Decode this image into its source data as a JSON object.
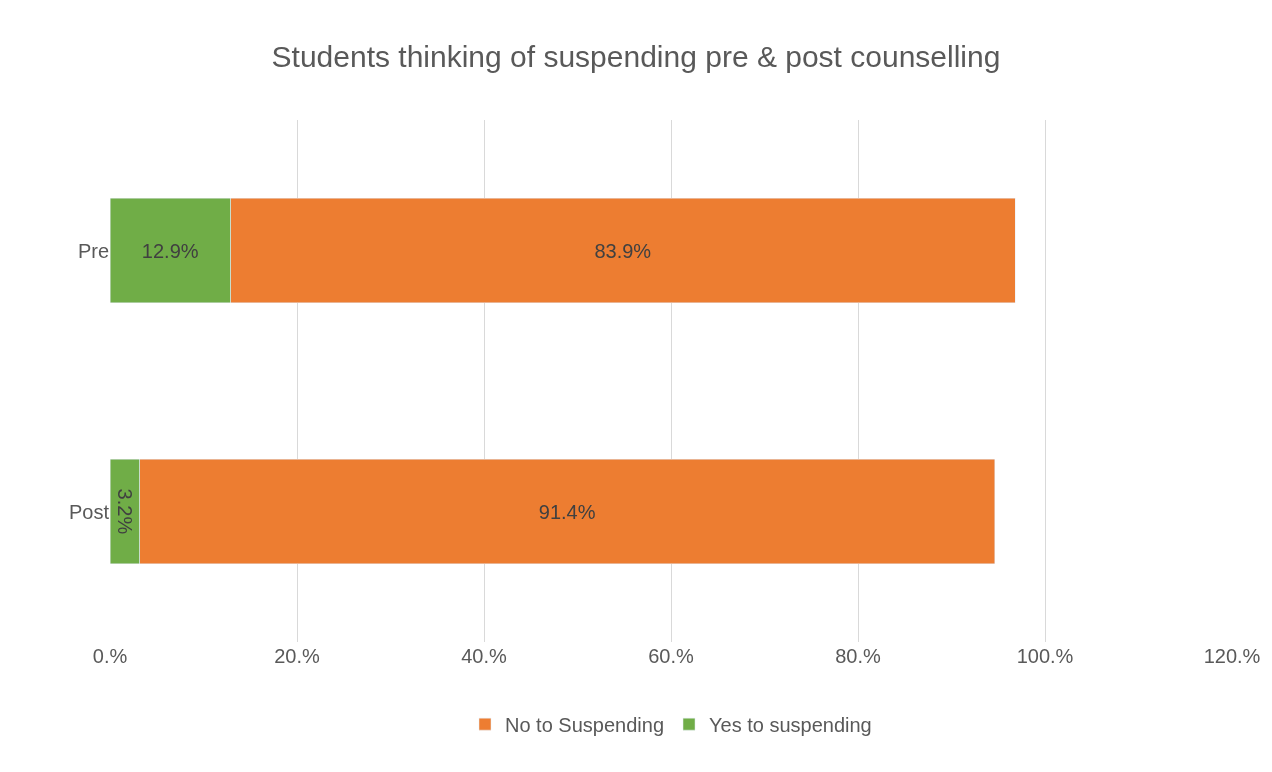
{
  "chart_data": {
    "type": "bar",
    "title": "Students thinking of suspending pre & post counselling",
    "orientation": "horizontal",
    "stacked": true,
    "categories": [
      "Pre",
      "Post"
    ],
    "series": [
      {
        "name": "Yes to suspending",
        "color": "#70ad47",
        "values": [
          12.9,
          3.2
        ],
        "value_labels": [
          "12.9%",
          "3.2%"
        ]
      },
      {
        "name": "No to Suspending",
        "color": "#ed7d31",
        "values": [
          83.9,
          91.4
        ],
        "value_labels": [
          "83.9%",
          "91.4%"
        ]
      }
    ],
    "xlim": [
      0,
      120
    ],
    "xticks": [
      {
        "value": 0,
        "label": "0.%"
      },
      {
        "value": 20,
        "label": "20.%"
      },
      {
        "value": 40,
        "label": "40.%"
      },
      {
        "value": 60,
        "label": "60.%"
      },
      {
        "value": 80,
        "label": "80.%"
      },
      {
        "value": 100,
        "label": "100.%"
      },
      {
        "value": 120,
        "label": "120.%"
      }
    ],
    "grid": "x",
    "legend": "bottom"
  }
}
